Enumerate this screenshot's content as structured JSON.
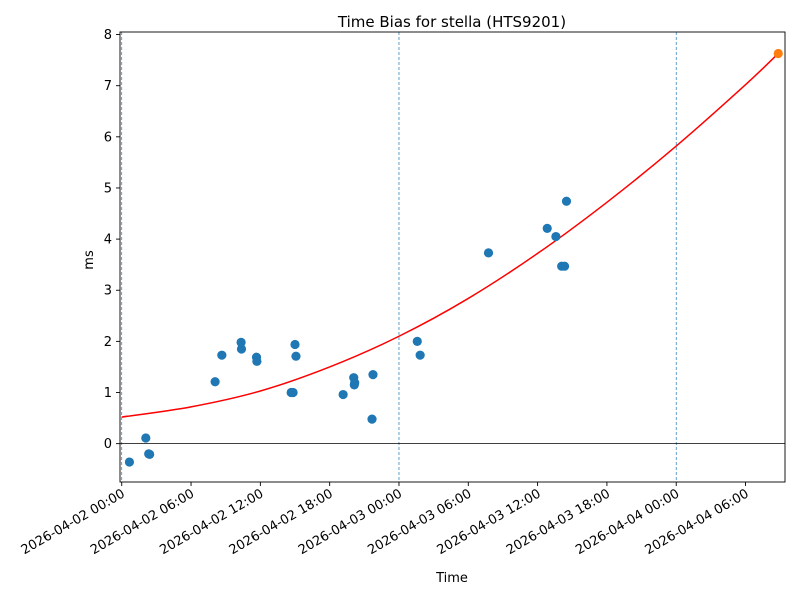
{
  "chart_data": {
    "type": "scatter",
    "title": "Time Bias for stella (HTS9201)",
    "xlabel": "Time",
    "ylabel": "ms",
    "x_type": "datetime",
    "xlim": [
      "2026-04-01T23:51",
      "2026-04-04T09:25"
    ],
    "ylim": [
      -0.75,
      8.05
    ],
    "x_ticks": [
      {
        "value": "2026-04-02T00:00",
        "label": "2026-04-02 00:00"
      },
      {
        "value": "2026-04-02T06:00",
        "label": "2026-04-02 06:00"
      },
      {
        "value": "2026-04-02T12:00",
        "label": "2026-04-02 12:00"
      },
      {
        "value": "2026-04-02T18:00",
        "label": "2026-04-02 18:00"
      },
      {
        "value": "2026-04-03T00:00",
        "label": "2026-04-03 00:00"
      },
      {
        "value": "2026-04-03T06:00",
        "label": "2026-04-03 06:00"
      },
      {
        "value": "2026-04-03T12:00",
        "label": "2026-04-03 12:00"
      },
      {
        "value": "2026-04-03T18:00",
        "label": "2026-04-03 18:00"
      },
      {
        "value": "2026-04-04T00:00",
        "label": "2026-04-04 00:00"
      },
      {
        "value": "2026-04-04T06:00",
        "label": "2026-04-04 06:00"
      }
    ],
    "y_ticks": [
      0,
      1,
      2,
      3,
      4,
      5,
      6,
      7,
      8
    ],
    "day_boundary_lines": [
      "2026-04-02T00:00",
      "2026-04-03T00:00",
      "2026-04-04T00:00"
    ],
    "zero_line": 0,
    "series": [
      {
        "kind": "scatter",
        "color": "#1f77b4",
        "points": [
          {
            "x": "2026-04-02T00:40",
            "y": -0.36
          },
          {
            "x": "2026-04-02T02:05",
            "y": 0.11
          },
          {
            "x": "2026-04-02T02:20",
            "y": -0.2
          },
          {
            "x": "2026-04-02T02:25",
            "y": -0.21
          },
          {
            "x": "2026-04-02T08:05",
            "y": 1.21
          },
          {
            "x": "2026-04-02T08:40",
            "y": 1.73
          },
          {
            "x": "2026-04-02T10:20",
            "y": 1.98
          },
          {
            "x": "2026-04-02T10:22",
            "y": 1.85
          },
          {
            "x": "2026-04-02T11:40",
            "y": 1.69
          },
          {
            "x": "2026-04-02T11:42",
            "y": 1.61
          },
          {
            "x": "2026-04-02T14:40",
            "y": 1.0
          },
          {
            "x": "2026-04-02T14:50",
            "y": 1.0
          },
          {
            "x": "2026-04-02T15:00",
            "y": 1.94
          },
          {
            "x": "2026-04-02T15:05",
            "y": 1.71
          },
          {
            "x": "2026-04-02T19:10",
            "y": 0.96
          },
          {
            "x": "2026-04-02T20:05",
            "y": 1.29
          },
          {
            "x": "2026-04-02T20:08",
            "y": 1.15
          },
          {
            "x": "2026-04-02T20:10",
            "y": 1.19
          },
          {
            "x": "2026-04-02T21:40",
            "y": 0.48
          },
          {
            "x": "2026-04-02T21:45",
            "y": 1.35
          },
          {
            "x": "2026-04-03T01:35",
            "y": 2.0
          },
          {
            "x": "2026-04-03T01:50",
            "y": 1.73
          },
          {
            "x": "2026-04-03T07:45",
            "y": 3.73
          },
          {
            "x": "2026-04-03T12:50",
            "y": 4.21
          },
          {
            "x": "2026-04-03T13:35",
            "y": 4.05
          },
          {
            "x": "2026-04-03T14:05",
            "y": 3.47
          },
          {
            "x": "2026-04-03T14:20",
            "y": 3.47
          },
          {
            "x": "2026-04-03T14:30",
            "y": 4.74
          }
        ]
      },
      {
        "kind": "line",
        "color": "#ff0000",
        "fit": "quadratic",
        "points": [
          {
            "x": "2026-04-02T00:00",
            "y": 0.52
          },
          {
            "x": "2026-04-02T06:00",
            "y": 0.72
          },
          {
            "x": "2026-04-02T12:00",
            "y": 1.03
          },
          {
            "x": "2026-04-02T18:00",
            "y": 1.5
          },
          {
            "x": "2026-04-03T00:00",
            "y": 2.1
          },
          {
            "x": "2026-04-03T06:00",
            "y": 2.84
          },
          {
            "x": "2026-04-03T12:00",
            "y": 3.72
          },
          {
            "x": "2026-04-03T18:00",
            "y": 4.72
          },
          {
            "x": "2026-04-04T00:00",
            "y": 5.82
          },
          {
            "x": "2026-04-04T06:00",
            "y": 7.02
          },
          {
            "x": "2026-04-04T08:50",
            "y": 7.63
          }
        ]
      },
      {
        "kind": "scatter",
        "color": "#ff7f0e",
        "points": [
          {
            "x": "2026-04-04T08:50",
            "y": 7.63
          }
        ]
      }
    ]
  }
}
